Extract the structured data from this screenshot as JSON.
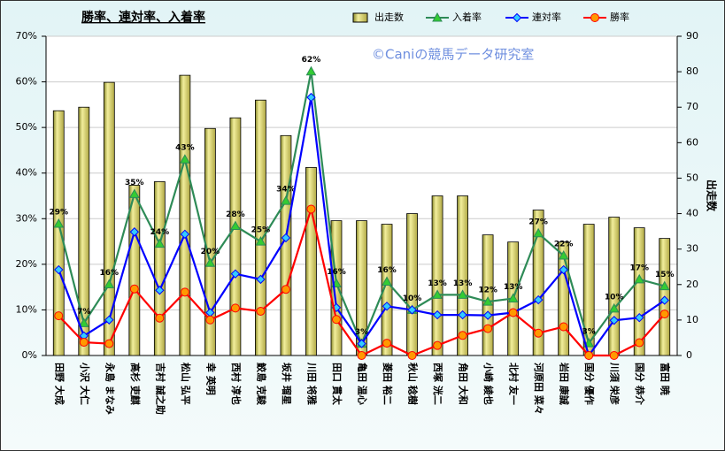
{
  "chart_data": {
    "type": "bar",
    "title": "勝率、連対率、入着率",
    "annotation": "©Caniの競馬データ研究室",
    "y2label": "出走数",
    "categories": [
      "田野 大成",
      "小沢 大仁",
      "永島 まなみ",
      "高杉 吏麒",
      "吉村 誠之助",
      "松山 弘平",
      "幸 英明",
      "西村 淳也",
      "鮫島 克駿",
      "坂井 瑠星",
      "川田 将雅",
      "田口 貫太",
      "亀田 温心",
      "菱田 裕二",
      "秋山 稔樹",
      "西塚 洸二",
      "角田 大和",
      "小崎 綾也",
      "北村 友一",
      "河原田 菜々",
      "岩田 康誠",
      "国分 優作",
      "川須 栄彦",
      "国分 恭介",
      "富田 暁"
    ],
    "series": [
      {
        "name": "出走数",
        "type": "bar",
        "axis": "y2",
        "color": "#d4cc6a",
        "values": [
          69,
          70,
          77,
          48,
          49,
          79,
          64,
          67,
          72,
          62,
          53,
          38,
          38,
          37,
          40,
          45,
          45,
          34,
          32,
          41,
          32,
          37,
          39,
          36,
          33
        ]
      },
      {
        "name": "入着率",
        "type": "line",
        "color": "#2e8b57",
        "marker": "triangle",
        "marker_color": "#33cc33",
        "values": [
          28.9,
          7.1,
          15.6,
          35.4,
          24.5,
          43.0,
          20.3,
          28.4,
          25.0,
          33.9,
          62.3,
          15.8,
          2.6,
          16.2,
          10.0,
          13.3,
          13.3,
          11.8,
          12.5,
          26.8,
          21.9,
          2.7,
          10.3,
          16.7,
          15.2
        ],
        "value_labels": [
          "29%",
          "7%",
          "16%",
          "35%",
          "24%",
          "43%",
          "20%",
          "28%",
          "25%",
          "34%",
          "62%",
          "16%",
          "3%",
          "16%",
          "10%",
          "13%",
          "13%",
          "12%",
          "13%",
          "27%",
          "22%",
          "3%",
          "10%",
          "17%",
          "15%"
        ]
      },
      {
        "name": "連対率",
        "type": "line",
        "color": "#0000ff",
        "marker": "diamond",
        "marker_color": "#33ccff",
        "values": [
          18.8,
          4.3,
          7.8,
          27.1,
          14.3,
          26.6,
          9.4,
          17.9,
          16.7,
          25.8,
          56.6,
          10.5,
          2.6,
          10.8,
          10.0,
          8.9,
          8.9,
          8.8,
          9.4,
          12.2,
          18.8,
          0,
          7.7,
          8.3,
          12.1
        ]
      },
      {
        "name": "勝率",
        "type": "line",
        "color": "#ff0000",
        "marker": "circle",
        "marker_color": "#ff9900",
        "values": [
          8.7,
          2.9,
          2.6,
          14.6,
          8.2,
          13.9,
          7.8,
          10.4,
          9.7,
          14.5,
          32.1,
          7.9,
          0,
          2.7,
          0,
          2.2,
          4.4,
          5.9,
          9.4,
          4.9,
          6.3,
          0,
          0,
          2.8,
          9.1
        ]
      }
    ],
    "ylim": [
      0,
      70
    ],
    "yticks": [
      {
        "value": 0,
        "label": "0%"
      },
      {
        "value": 10,
        "label": "10%"
      },
      {
        "value": 20,
        "label": "20%"
      },
      {
        "value": 30,
        "label": "30%"
      },
      {
        "value": 40,
        "label": "40%"
      },
      {
        "value": 50,
        "label": "50%"
      },
      {
        "value": 60,
        "label": "60%"
      },
      {
        "value": 70,
        "label": "70%"
      }
    ],
    "y2lim": [
      0,
      90
    ],
    "y2ticks": [
      0,
      10,
      20,
      30,
      40,
      50,
      60,
      70,
      80,
      90
    ],
    "grid": true,
    "legend": "top"
  }
}
